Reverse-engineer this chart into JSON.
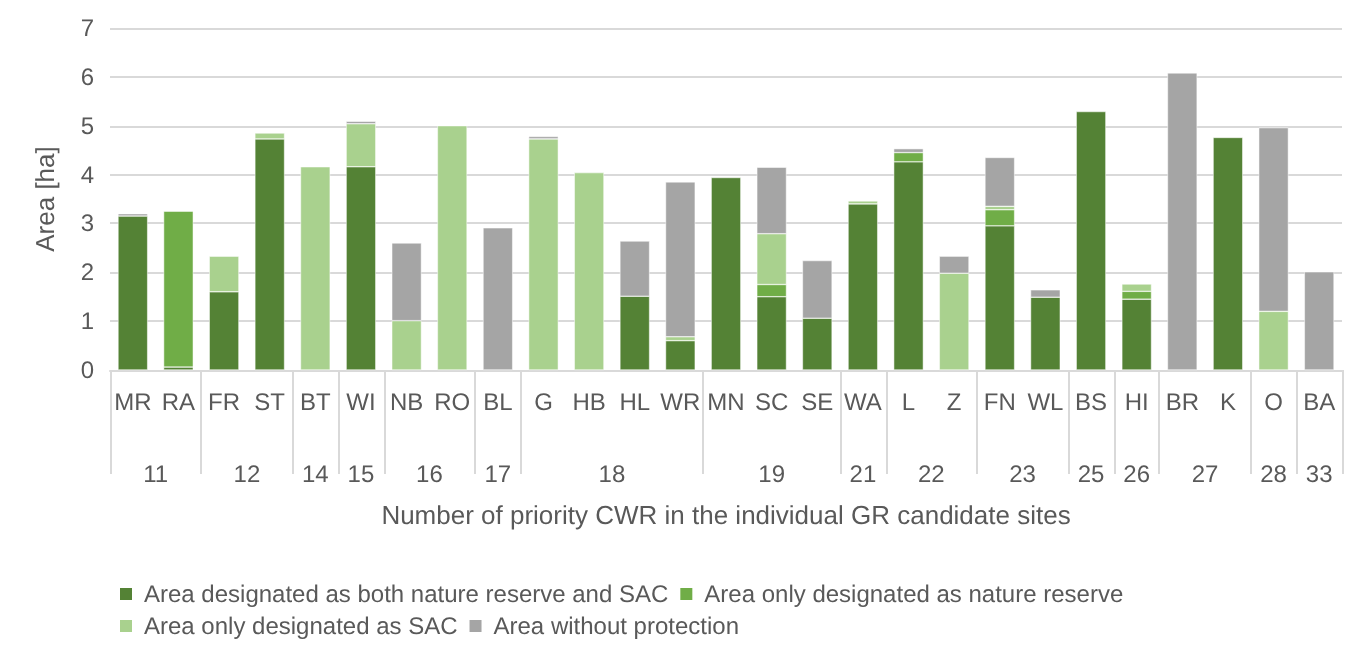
{
  "chart_data": {
    "type": "bar",
    "stacked": true,
    "xlabel": "Number of priority CWR in the individual GR candidate sites",
    "ylabel": "Area [ha]",
    "categories": [
      "MR",
      "RA",
      "FR",
      "ST",
      "BT",
      "WI",
      "NB",
      "RO",
      "BL",
      "G",
      "HB",
      "HL",
      "WR",
      "MN",
      "SC",
      "SE",
      "WA",
      "L",
      "Z",
      "FN",
      "WL",
      "BS",
      "HI",
      "BR",
      "K",
      "O",
      "BA"
    ],
    "series": [
      {
        "name": "Area designated as both nature reserve and SAC",
        "color": "#548235",
        "values": [
          3.15,
          0.06,
          1.6,
          4.73,
          null,
          4.16,
          null,
          null,
          null,
          null,
          null,
          1.51,
          0.6,
          3.94,
          1.5,
          1.06,
          3.4,
          4.26,
          null,
          2.95,
          1.49,
          5.29,
          1.45,
          null,
          4.76,
          null,
          null
        ]
      },
      {
        "name": "Area only designated as nature reserve",
        "color": "#70ad47",
        "values": [
          null,
          3.19,
          null,
          null,
          null,
          null,
          null,
          null,
          null,
          null,
          null,
          null,
          null,
          null,
          0.25,
          null,
          null,
          0.19,
          null,
          0.33,
          null,
          null,
          0.16,
          null,
          null,
          null,
          null
        ]
      },
      {
        "name": "Area only designated as SAC",
        "color": "#a9d18e",
        "values": [
          null,
          null,
          0.73,
          0.12,
          4.16,
          0.88,
          1.01,
          5.0,
          null,
          4.73,
          4.04,
          null,
          0.08,
          null,
          1.04,
          null,
          0.06,
          null,
          1.98,
          0.07,
          null,
          null,
          0.15,
          null,
          null,
          1.2,
          null
        ]
      },
      {
        "name": "Area without protection",
        "color": "#a5a5a5",
        "values": [
          0.05,
          null,
          null,
          null,
          null,
          0.05,
          1.59,
          null,
          2.91,
          0.05,
          null,
          1.13,
          3.17,
          null,
          1.36,
          1.18,
          null,
          0.08,
          0.35,
          1.0,
          0.15,
          null,
          null,
          6.08,
          null,
          3.76,
          2.01
        ]
      }
    ],
    "ylim": [
      0,
      7
    ],
    "yticks": [
      0,
      1,
      2,
      3,
      4,
      5,
      6,
      7
    ],
    "grid": "y",
    "legend": "bottom",
    "annotations": [
      "11",
      "12",
      "14",
      "15",
      "16",
      "17",
      "18",
      "19",
      "21",
      "22",
      "23",
      "25",
      "26",
      "27",
      "28",
      "33"
    ]
  }
}
